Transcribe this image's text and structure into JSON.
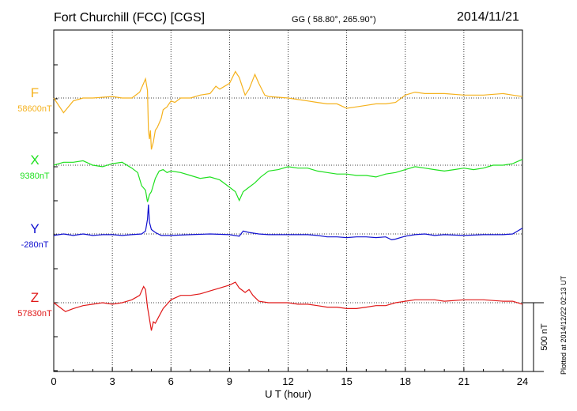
{
  "header": {
    "title": "Fort Churchill (FCC)  [CGS]",
    "coords": "GG ( 58.80°, 265.90°)",
    "date": "2014/11/21"
  },
  "footer": {
    "plotted": "Plotted at 2014/12/22 02:13 UT"
  },
  "chart_data": {
    "type": "line",
    "xlabel": "U T (hour)",
    "xlim": [
      0,
      24
    ],
    "xticks": [
      0,
      3,
      6,
      9,
      12,
      15,
      18,
      21,
      24
    ],
    "scale_bar": {
      "label": "500 nT",
      "nT": 500
    },
    "series": [
      {
        "name": "F",
        "baseline_label": "58600nT",
        "baseline_nT": 58600,
        "color": "#f5b21e",
        "points": [
          [
            0,
            58600
          ],
          [
            0.5,
            58500
          ],
          [
            1,
            58580
          ],
          [
            1.5,
            58600
          ],
          [
            2,
            58600
          ],
          [
            3,
            58610
          ],
          [
            3.5,
            58600
          ],
          [
            4,
            58600
          ],
          [
            4.4,
            58640
          ],
          [
            4.6,
            58700
          ],
          [
            4.7,
            58730
          ],
          [
            4.8,
            58650
          ],
          [
            4.85,
            58380
          ],
          [
            4.9,
            58320
          ],
          [
            4.95,
            58380
          ],
          [
            5.0,
            58250
          ],
          [
            5.1,
            58300
          ],
          [
            5.2,
            58380
          ],
          [
            5.3,
            58400
          ],
          [
            5.5,
            58460
          ],
          [
            5.6,
            58520
          ],
          [
            5.8,
            58540
          ],
          [
            6.0,
            58580
          ],
          [
            6.2,
            58570
          ],
          [
            6.5,
            58600
          ],
          [
            7,
            58600
          ],
          [
            7.5,
            58620
          ],
          [
            8,
            58630
          ],
          [
            8.3,
            58680
          ],
          [
            8.5,
            58660
          ],
          [
            9,
            58700
          ],
          [
            9.3,
            58780
          ],
          [
            9.5,
            58740
          ],
          [
            9.8,
            58620
          ],
          [
            10,
            58660
          ],
          [
            10.3,
            58760
          ],
          [
            10.5,
            58700
          ],
          [
            10.8,
            58620
          ],
          [
            11,
            58610
          ],
          [
            12,
            58600
          ],
          [
            12.5,
            58590
          ],
          [
            13,
            58580
          ],
          [
            13.5,
            58570
          ],
          [
            14,
            58560
          ],
          [
            14.5,
            58560
          ],
          [
            15,
            58530
          ],
          [
            15.5,
            58540
          ],
          [
            16,
            58550
          ],
          [
            16.5,
            58560
          ],
          [
            17,
            58560
          ],
          [
            17.5,
            58570
          ],
          [
            18,
            58620
          ],
          [
            18.5,
            58640
          ],
          [
            19,
            58630
          ],
          [
            20,
            58630
          ],
          [
            21,
            58620
          ],
          [
            22,
            58620
          ],
          [
            23,
            58630
          ],
          [
            23.5,
            58620
          ],
          [
            24,
            58610
          ]
        ]
      },
      {
        "name": "X",
        "baseline_label": "9380nT",
        "baseline_nT": 9380,
        "color": "#1ee01e",
        "points": [
          [
            0,
            9380
          ],
          [
            0.5,
            9400
          ],
          [
            1,
            9400
          ],
          [
            1.5,
            9410
          ],
          [
            2,
            9380
          ],
          [
            2.5,
            9370
          ],
          [
            3,
            9390
          ],
          [
            3.5,
            9400
          ],
          [
            4,
            9360
          ],
          [
            4.3,
            9330
          ],
          [
            4.5,
            9240
          ],
          [
            4.7,
            9210
          ],
          [
            4.8,
            9130
          ],
          [
            4.9,
            9180
          ],
          [
            5.0,
            9200
          ],
          [
            5.2,
            9290
          ],
          [
            5.4,
            9340
          ],
          [
            5.6,
            9350
          ],
          [
            5.8,
            9330
          ],
          [
            6,
            9340
          ],
          [
            6.5,
            9330
          ],
          [
            7,
            9310
          ],
          [
            7.5,
            9290
          ],
          [
            8,
            9300
          ],
          [
            8.5,
            9280
          ],
          [
            9,
            9230
          ],
          [
            9.3,
            9200
          ],
          [
            9.5,
            9140
          ],
          [
            9.7,
            9200
          ],
          [
            10,
            9230
          ],
          [
            10.3,
            9260
          ],
          [
            10.6,
            9300
          ],
          [
            11,
            9340
          ],
          [
            11.5,
            9350
          ],
          [
            12,
            9370
          ],
          [
            12.5,
            9360
          ],
          [
            13,
            9360
          ],
          [
            13.5,
            9340
          ],
          [
            14,
            9330
          ],
          [
            14.5,
            9320
          ],
          [
            15,
            9320
          ],
          [
            15.5,
            9310
          ],
          [
            16,
            9310
          ],
          [
            16.5,
            9300
          ],
          [
            17,
            9320
          ],
          [
            17.5,
            9330
          ],
          [
            18,
            9350
          ],
          [
            18.5,
            9370
          ],
          [
            19,
            9360
          ],
          [
            19.5,
            9350
          ],
          [
            20,
            9340
          ],
          [
            20.5,
            9350
          ],
          [
            21,
            9360
          ],
          [
            21.5,
            9350
          ],
          [
            22,
            9360
          ],
          [
            22.5,
            9380
          ],
          [
            23,
            9380
          ],
          [
            23.5,
            9390
          ],
          [
            24,
            9420
          ]
        ]
      },
      {
        "name": "Y",
        "baseline_label": "-280nT",
        "baseline_nT": -280,
        "color": "#1010d0",
        "points": [
          [
            0,
            -290
          ],
          [
            0.5,
            -280
          ],
          [
            1,
            -290
          ],
          [
            1.5,
            -280
          ],
          [
            2,
            -290
          ],
          [
            2.5,
            -285
          ],
          [
            3,
            -285
          ],
          [
            3.5,
            -290
          ],
          [
            4,
            -285
          ],
          [
            4.5,
            -280
          ],
          [
            4.7,
            -260
          ],
          [
            4.8,
            -180
          ],
          [
            4.85,
            -80
          ],
          [
            4.9,
            -200
          ],
          [
            5.0,
            -250
          ],
          [
            5.2,
            -270
          ],
          [
            5.5,
            -290
          ],
          [
            6,
            -290
          ],
          [
            7,
            -285
          ],
          [
            8,
            -280
          ],
          [
            9,
            -285
          ],
          [
            9.5,
            -295
          ],
          [
            9.7,
            -260
          ],
          [
            10,
            -270
          ],
          [
            10.5,
            -280
          ],
          [
            11,
            -285
          ],
          [
            12,
            -285
          ],
          [
            13,
            -285
          ],
          [
            13.5,
            -290
          ],
          [
            14,
            -300
          ],
          [
            14.5,
            -300
          ],
          [
            15,
            -305
          ],
          [
            15.5,
            -300
          ],
          [
            16,
            -300
          ],
          [
            16.5,
            -305
          ],
          [
            17,
            -300
          ],
          [
            17.3,
            -320
          ],
          [
            17.5,
            -315
          ],
          [
            18,
            -295
          ],
          [
            18.5,
            -285
          ],
          [
            19,
            -280
          ],
          [
            19.5,
            -290
          ],
          [
            20,
            -285
          ],
          [
            21,
            -290
          ],
          [
            22,
            -285
          ],
          [
            23,
            -285
          ],
          [
            23.5,
            -280
          ],
          [
            24,
            -240
          ]
        ]
      },
      {
        "name": "Z",
        "baseline_label": "57830nT",
        "baseline_nT": 57830,
        "color": "#e01818",
        "points": [
          [
            0,
            57830
          ],
          [
            0.3,
            57800
          ],
          [
            0.6,
            57770
          ],
          [
            1,
            57790
          ],
          [
            1.5,
            57810
          ],
          [
            2,
            57820
          ],
          [
            2.5,
            57830
          ],
          [
            3,
            57820
          ],
          [
            3.5,
            57830
          ],
          [
            4,
            57850
          ],
          [
            4.4,
            57880
          ],
          [
            4.6,
            57940
          ],
          [
            4.7,
            57920
          ],
          [
            4.8,
            57800
          ],
          [
            4.9,
            57720
          ],
          [
            5.0,
            57640
          ],
          [
            5.1,
            57700
          ],
          [
            5.2,
            57690
          ],
          [
            5.4,
            57740
          ],
          [
            5.6,
            57790
          ],
          [
            5.8,
            57820
          ],
          [
            6,
            57850
          ],
          [
            6.5,
            57880
          ],
          [
            7,
            57880
          ],
          [
            7.5,
            57890
          ],
          [
            8,
            57910
          ],
          [
            8.5,
            57930
          ],
          [
            9,
            57950
          ],
          [
            9.3,
            57970
          ],
          [
            9.5,
            57930
          ],
          [
            9.8,
            57900
          ],
          [
            10,
            57920
          ],
          [
            10.2,
            57880
          ],
          [
            10.5,
            57840
          ],
          [
            11,
            57830
          ],
          [
            11.5,
            57830
          ],
          [
            12,
            57830
          ],
          [
            12.5,
            57820
          ],
          [
            13,
            57820
          ],
          [
            13.5,
            57810
          ],
          [
            14,
            57800
          ],
          [
            14.5,
            57800
          ],
          [
            15,
            57790
          ],
          [
            15.5,
            57790
          ],
          [
            16,
            57800
          ],
          [
            16.5,
            57810
          ],
          [
            17,
            57810
          ],
          [
            17.5,
            57830
          ],
          [
            18,
            57840
          ],
          [
            18.5,
            57850
          ],
          [
            19,
            57850
          ],
          [
            19.5,
            57850
          ],
          [
            20,
            57840
          ],
          [
            21,
            57850
          ],
          [
            22,
            57850
          ],
          [
            23,
            57840
          ],
          [
            23.5,
            57840
          ],
          [
            24,
            57820
          ]
        ]
      }
    ]
  }
}
